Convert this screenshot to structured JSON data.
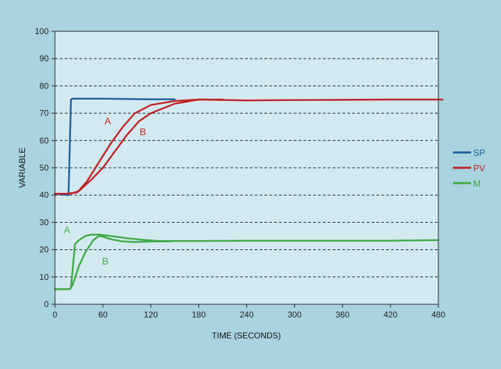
{
  "chart_data": {
    "type": "line",
    "title": "",
    "xlabel": "TIME (SECONDS)",
    "ylabel": "VARIABLE",
    "xlim": [
      0,
      480
    ],
    "ylim": [
      0,
      100
    ],
    "x_ticks": [
      0,
      60,
      120,
      180,
      240,
      300,
      360,
      420,
      480
    ],
    "y_ticks": [
      0,
      10,
      20,
      30,
      40,
      50,
      60,
      70,
      80,
      90,
      100
    ],
    "grid": "horizontal-dashed",
    "legend_position": "right",
    "colors": {
      "background": "#a8d3df",
      "plot_area": "#d3e9f0",
      "SP": "#1f5f9e",
      "PV": "#bf2426",
      "M": "#3faa46"
    },
    "legend": [
      {
        "name": "SP",
        "color": "#1f5f9e"
      },
      {
        "name": "PV",
        "color": "#bf2426"
      },
      {
        "name": "M",
        "color": "#3faa46"
      }
    ],
    "series": [
      {
        "name": "SP",
        "color": "#1f5f9e",
        "points": [
          [
            5,
            40.3
          ],
          [
            17,
            40
          ],
          [
            20,
            75
          ],
          [
            22,
            75.3
          ],
          [
            60,
            75.3
          ],
          [
            120,
            75.1
          ],
          [
            150,
            75.1
          ]
        ]
      },
      {
        "name": "PV",
        "variant": "A",
        "color": "#bf2426",
        "points": [
          [
            0,
            40.5
          ],
          [
            15,
            40.5
          ],
          [
            28,
            41
          ],
          [
            40,
            45
          ],
          [
            55,
            52
          ],
          [
            70,
            59
          ],
          [
            85,
            65
          ],
          [
            100,
            70
          ],
          [
            120,
            73
          ],
          [
            150,
            74.5
          ],
          [
            180,
            75
          ],
          [
            240,
            74.7
          ],
          [
            300,
            74.8
          ],
          [
            360,
            74.9
          ],
          [
            420,
            75
          ],
          [
            480,
            75
          ],
          [
            485,
            75
          ]
        ]
      },
      {
        "name": "PV",
        "variant": "B",
        "color": "#bf2426",
        "points": [
          [
            0,
            40.5
          ],
          [
            20,
            40.5
          ],
          [
            30,
            41.5
          ],
          [
            45,
            45.5
          ],
          [
            60,
            50
          ],
          [
            75,
            56
          ],
          [
            90,
            62
          ],
          [
            105,
            67
          ],
          [
            120,
            70
          ],
          [
            150,
            73.5
          ],
          [
            180,
            75
          ],
          [
            210,
            75
          ]
        ]
      },
      {
        "name": "M",
        "variant": "A",
        "color": "#3faa46",
        "points": [
          [
            0,
            5.5
          ],
          [
            18,
            5.5
          ],
          [
            20,
            6
          ],
          [
            25,
            22
          ],
          [
            30,
            23.5
          ],
          [
            38,
            25
          ],
          [
            45,
            25.5
          ],
          [
            55,
            25.5
          ],
          [
            70,
            25
          ],
          [
            90,
            24.2
          ],
          [
            110,
            23.6
          ],
          [
            130,
            23.2
          ],
          [
            180,
            23.2
          ],
          [
            240,
            23.3
          ],
          [
            300,
            23.3
          ],
          [
            360,
            23.3
          ],
          [
            420,
            23.3
          ],
          [
            480,
            23.5
          ]
        ]
      },
      {
        "name": "M",
        "variant": "B",
        "color": "#3faa46",
        "points": [
          [
            0,
            5.5
          ],
          [
            18,
            5.5
          ],
          [
            22,
            7
          ],
          [
            30,
            14
          ],
          [
            38,
            19
          ],
          [
            48,
            23.5
          ],
          [
            55,
            25
          ],
          [
            60,
            24.8
          ],
          [
            70,
            23.8
          ],
          [
            85,
            23
          ],
          [
            100,
            22.8
          ],
          [
            120,
            23
          ],
          [
            145,
            23
          ]
        ]
      }
    ],
    "annotations": [
      {
        "text": "A",
        "x": 66,
        "y": 66,
        "color": "#bf2426"
      },
      {
        "text": "B",
        "x": 110,
        "y": 62,
        "color": "#bf2426"
      },
      {
        "text": "A",
        "x": 15,
        "y": 26,
        "color": "#3faa46"
      },
      {
        "text": "B",
        "x": 63,
        "y": 14.5,
        "color": "#3faa46"
      }
    ]
  }
}
